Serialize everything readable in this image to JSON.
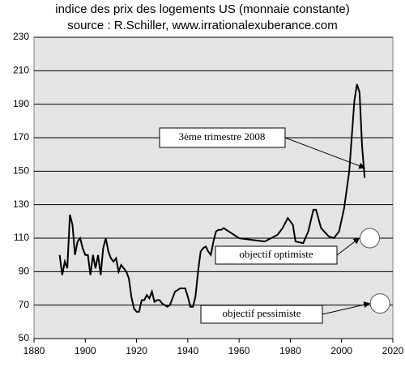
{
  "chart_data": {
    "type": "line",
    "title": "indice des prix des logements US (monnaie constante)",
    "subtitle": "source : R.Schiller, www.irrationalexuberance.com",
    "color": "#000000",
    "grid": true,
    "x": [
      1890,
      1891,
      1892,
      1893,
      1894,
      1895,
      1896,
      1897,
      1898,
      1899,
      1900,
      1901,
      1902,
      1903,
      1904,
      1905,
      1906,
      1907,
      1908,
      1909,
      1910,
      1911,
      1912,
      1913,
      1914,
      1915,
      1916,
      1917,
      1918,
      1919,
      1920,
      1921,
      1922,
      1923,
      1924,
      1925,
      1926,
      1927,
      1928,
      1929,
      1930,
      1931,
      1932,
      1933,
      1934,
      1935,
      1936,
      1937,
      1938,
      1939,
      1940,
      1941,
      1942,
      1943,
      1944,
      1945,
      1946,
      1947,
      1948,
      1949,
      1950,
      1951,
      1952,
      1953,
      1954,
      1955,
      1960,
      1965,
      1970,
      1975,
      1977,
      1979,
      1981,
      1982,
      1985,
      1987,
      1989,
      1990,
      1992,
      1995,
      1997,
      1999,
      2001,
      2003,
      2005,
      2006,
      2007,
      2008,
      2009
    ],
    "values": [
      100,
      88,
      96,
      92,
      124,
      118,
      100,
      108,
      110,
      104,
      100,
      100,
      88,
      100,
      92,
      100,
      88,
      104,
      110,
      102,
      98,
      96,
      98,
      90,
      94,
      92,
      90,
      86,
      75,
      68,
      66,
      66,
      73,
      73,
      76,
      74,
      78,
      72,
      73,
      73,
      71,
      70,
      69,
      70,
      74,
      78,
      79,
      80,
      80,
      80,
      75,
      69,
      69,
      75,
      90,
      102,
      104,
      105,
      102,
      100,
      108,
      114,
      115,
      115,
      116,
      115,
      110,
      109,
      108,
      112,
      116,
      122,
      118,
      108,
      107,
      114,
      127,
      127,
      116,
      111,
      110,
      114,
      128,
      150,
      192,
      202,
      197,
      165,
      146
    ],
    "xlim": [
      1880,
      2020
    ],
    "xticks": [
      1880,
      1900,
      1920,
      1940,
      1960,
      1980,
      2000,
      2020
    ],
    "ylim": [
      50,
      230
    ],
    "yticks": [
      50,
      70,
      90,
      110,
      130,
      150,
      170,
      190,
      210,
      230
    ],
    "annotation": {
      "text": "3ème trimestre 2008",
      "x": 2009,
      "y": 152
    },
    "targets": [
      {
        "label": "objectif optimiste",
        "x": 2011,
        "y": 110
      },
      {
        "label": "objectif pessimiste",
        "x": 2015,
        "y": 71
      }
    ]
  }
}
